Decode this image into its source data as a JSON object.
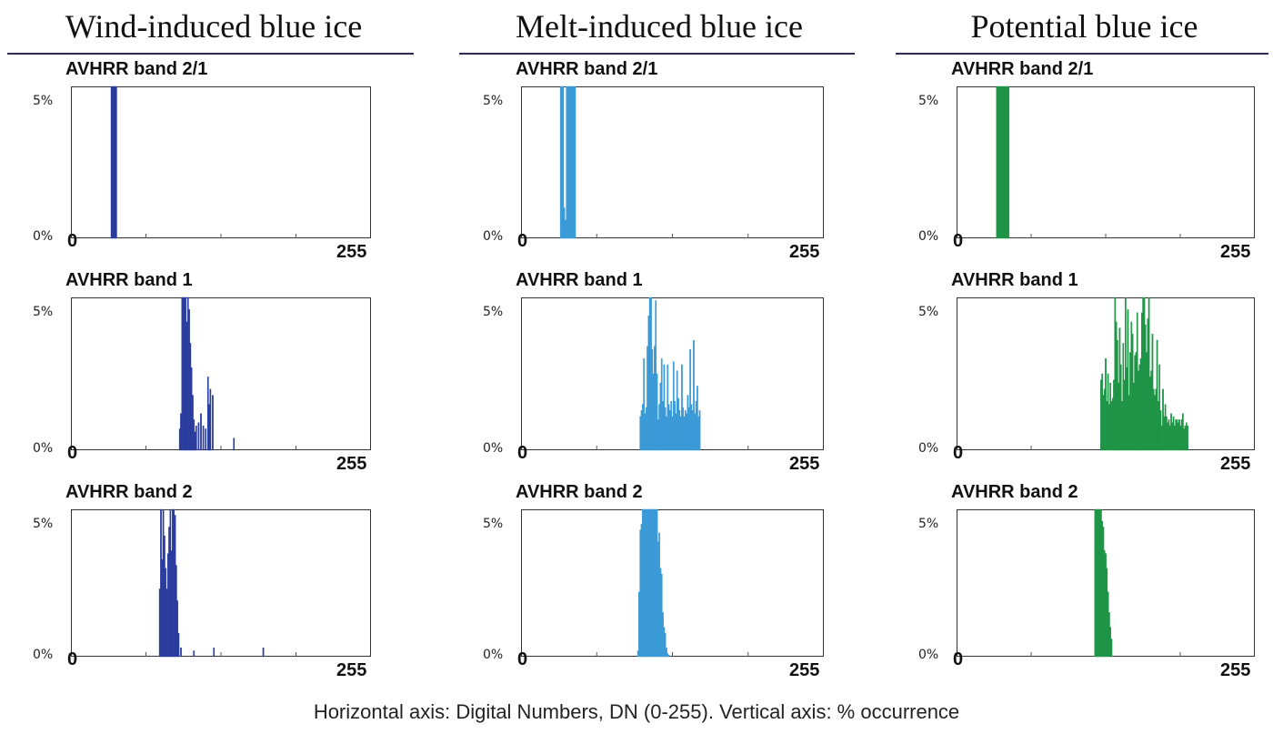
{
  "columns": [
    {
      "title": "Wind-induced blue ice"
    },
    {
      "title": "Melt-induced blue ice"
    },
    {
      "title": "Potential blue ice"
    }
  ],
  "footnote": "Horizontal axis: Digital Numbers, DN (0-255).   Vertical axis: % occurrence",
  "axis_labels": {
    "ymax": "5%",
    "ymin": "0%",
    "xmin": "0",
    "xmax": "255"
  },
  "colors": {
    "Wind-induced blue ice": "#2a3c9e",
    "Melt-induced blue ice": "#3a9ad6",
    "Potential blue ice": "#1f9446"
  },
  "chart_data": [
    {
      "type": "bar",
      "title": "AVHRR band 2/1",
      "column": "Wind-induced blue ice",
      "xlim": [
        0,
        255
      ],
      "ylim": [
        0,
        5
      ],
      "x": [
        34,
        35,
        36,
        37,
        38
      ],
      "values": [
        5,
        5,
        5,
        5,
        5
      ]
    },
    {
      "type": "bar",
      "title": "AVHRR band 1",
      "column": "Wind-induced blue ice",
      "xlim": [
        0,
        255
      ],
      "ylim": [
        0,
        5
      ],
      "x": [
        92,
        93,
        94,
        95,
        96,
        97,
        98,
        99,
        100,
        101,
        102,
        103,
        104,
        105,
        106,
        108,
        110,
        112,
        114,
        116,
        117,
        118,
        120,
        138
      ],
      "values": [
        0.7,
        1.2,
        5,
        5,
        5,
        5,
        4.2,
        5,
        4.6,
        3.5,
        2.7,
        1.8,
        1.0,
        0.6,
        0.8,
        0.9,
        1.2,
        0.8,
        0.7,
        2.4,
        1.5,
        2.0,
        1.8,
        0.4
      ]
    },
    {
      "type": "bar",
      "title": "AVHRR band 2",
      "column": "Wind-induced blue ice",
      "xlim": [
        0,
        255
      ],
      "ylim": [
        0,
        5
      ],
      "x": [
        75,
        76,
        77,
        78,
        79,
        80,
        81,
        82,
        83,
        84,
        85,
        86,
        87,
        88,
        89,
        90,
        91,
        93,
        104,
        121,
        163
      ],
      "values": [
        2.3,
        5,
        3.3,
        5,
        4.1,
        3.0,
        2.3,
        3.5,
        4.4,
        5,
        3.6,
        5,
        5,
        4.8,
        3.1,
        1.9,
        0.8,
        0.3,
        0.2,
        0.3,
        0.3
      ]
    },
    {
      "type": "bar",
      "title": "AVHRR band 2/1",
      "column": "Melt-induced blue ice",
      "xlim": [
        0,
        255
      ],
      "ylim": [
        0,
        5
      ],
      "x": [
        33,
        34,
        35,
        36,
        37,
        38,
        39,
        40,
        41,
        42,
        43,
        44,
        45
      ],
      "values": [
        5,
        5,
        5,
        1.0,
        0.6,
        5,
        5,
        5,
        5,
        5,
        5,
        5,
        5
      ]
    },
    {
      "type": "bar",
      "title": "AVHRR band 1",
      "column": "Melt-induced blue ice",
      "xlim": [
        0,
        255
      ],
      "ylim": [
        0,
        5
      ],
      "x": [
        100,
        101,
        102,
        103,
        104,
        105,
        106,
        107,
        108,
        109,
        110,
        111,
        112,
        113,
        114,
        115,
        116,
        117,
        118,
        119,
        120,
        121,
        122,
        123,
        124,
        125,
        126,
        127,
        128,
        129,
        130,
        131,
        132,
        133,
        134,
        135,
        136,
        137,
        138,
        139,
        140,
        141,
        142,
        143,
        144,
        145,
        146,
        147,
        148,
        149,
        150
      ],
      "values": [
        1.1,
        1.3,
        1.5,
        3.0,
        1.2,
        1.4,
        3.4,
        4.4,
        5,
        5,
        3.3,
        2.5,
        3.4,
        4.9,
        2.5,
        1.0,
        1.5,
        2.2,
        3.0,
        1.6,
        2.8,
        1.4,
        1.1,
        2.8,
        1.5,
        1.3,
        1.6,
        1.1,
        2.9,
        1.6,
        1.2,
        2.6,
        1.7,
        1.3,
        1.1,
        2.8,
        1.4,
        1.1,
        1.3,
        1.2,
        1.8,
        1.4,
        3.3,
        1.5,
        1.3,
        3.6,
        1.2,
        1.6,
        2.1,
        1.1,
        1.3
      ]
    },
    {
      "type": "bar",
      "title": "AVHRR band 2",
      "column": "Melt-induced blue ice",
      "xlim": [
        0,
        255
      ],
      "ylim": [
        0,
        5
      ],
      "x": [
        98,
        99,
        100,
        101,
        102,
        103,
        104,
        105,
        106,
        107,
        108,
        109,
        110,
        111,
        112,
        113,
        114,
        115,
        116,
        117,
        118,
        119,
        120,
        121,
        122,
        123,
        124
      ],
      "values": [
        0.2,
        2.2,
        4.3,
        4.5,
        5,
        5,
        5,
        5,
        5,
        5,
        5,
        5,
        5,
        5,
        5,
        5,
        5,
        3.9,
        4.2,
        3.0,
        2.8,
        1.5,
        1.0,
        0.8,
        0.3,
        0.1,
        0.05
      ]
    },
    {
      "type": "bar",
      "title": "AVHRR band 2/1",
      "column": "Potential blue ice",
      "xlim": [
        0,
        255
      ],
      "ylim": [
        0,
        5
      ],
      "x": [
        34,
        35,
        36,
        37,
        38,
        39,
        40,
        41,
        42,
        43,
        44
      ],
      "values": [
        5,
        5,
        5,
        5,
        5,
        5,
        5,
        5,
        5,
        5,
        5
      ]
    },
    {
      "type": "bar",
      "title": "AVHRR band 1",
      "column": "Potential blue ice",
      "xlim": [
        0,
        255
      ],
      "ylim": [
        0,
        5
      ],
      "x": [
        123,
        124,
        125,
        126,
        127,
        128,
        129,
        130,
        131,
        132,
        133,
        134,
        135,
        136,
        137,
        138,
        139,
        140,
        141,
        142,
        143,
        144,
        145,
        146,
        147,
        148,
        149,
        150,
        151,
        152,
        153,
        154,
        155,
        156,
        157,
        158,
        159,
        160,
        161,
        162,
        163,
        164,
        165,
        166,
        167,
        168,
        169,
        170,
        171,
        172,
        173,
        174,
        175,
        176,
        177,
        178,
        179,
        180,
        181,
        182,
        183,
        184,
        185,
        186,
        187,
        188,
        189,
        190,
        191,
        192,
        193,
        194,
        195,
        196,
        197
      ],
      "values": [
        2.3,
        2.5,
        1.8,
        2.0,
        3.0,
        1.6,
        2.5,
        1.5,
        2.2,
        1.6,
        1.7,
        2.3,
        5,
        4.2,
        3.6,
        2.2,
        4.0,
        2.8,
        1.6,
        3.5,
        2.3,
        5,
        2.7,
        4.6,
        1.8,
        3.2,
        4.2,
        3.8,
        2.2,
        3.1,
        3.2,
        4.5,
        2.6,
        2.8,
        3.0,
        4.5,
        5,
        5,
        4.1,
        3.2,
        4.3,
        5,
        2.4,
        2.6,
        3.8,
        2.0,
        1.8,
        2.0,
        3.6,
        1.6,
        2.8,
        1.3,
        0.8,
        2.0,
        1.1,
        1.5,
        1.1,
        0.9,
        1.0,
        0.8,
        1.2,
        0.9,
        1.1,
        0.8,
        1.0,
        1.0,
        0.9,
        1.0,
        0.8,
        1.0,
        1.2,
        0.7,
        0.8,
        0.9,
        0.8
      ]
    },
    {
      "type": "bar",
      "title": "AVHRR band 2",
      "column": "Potential blue ice",
      "xlim": [
        0,
        255
      ],
      "ylim": [
        0,
        5
      ],
      "x": [
        118,
        119,
        120,
        121,
        122,
        123,
        124,
        125,
        126,
        127,
        128,
        129,
        130,
        131,
        132
      ],
      "values": [
        5,
        5,
        5,
        5,
        5,
        5,
        4.6,
        4.4,
        3.6,
        3.5,
        3.0,
        2.2,
        1.5,
        1.0,
        0.6
      ]
    }
  ]
}
